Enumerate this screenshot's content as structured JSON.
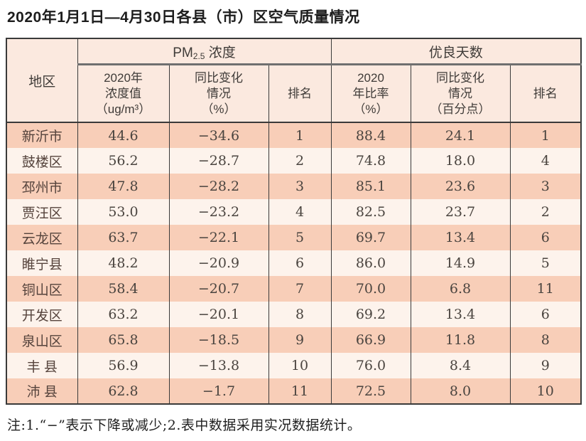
{
  "title": "2020年1月1日—4月30日各县（市）区空气质量情况",
  "table": {
    "region_header": "地区",
    "group_pm": {
      "prefix": "PM",
      "sub": "2.5",
      "suffix": " 浓度"
    },
    "group_days": "优良天数",
    "subheaders": {
      "pm_value": "2020年\n浓度值\n（ug/m³）",
      "pm_change": "同比变化\n情况\n（%）",
      "pm_rank": "排名",
      "days_rate": "2020\n年比率\n（%）",
      "days_change": "同比变化\n情况\n（百分点）",
      "days_rank": "排名"
    },
    "rows": [
      {
        "region": "新沂市",
        "pm_value": "44.6",
        "pm_change": "−34.6",
        "pm_rank": "1",
        "days_rate": "88.4",
        "days_change": "24.1",
        "days_rank": "1"
      },
      {
        "region": "鼓楼区",
        "pm_value": "56.2",
        "pm_change": "−28.7",
        "pm_rank": "2",
        "days_rate": "74.8",
        "days_change": "18.0",
        "days_rank": "4"
      },
      {
        "region": "邳州市",
        "pm_value": "47.8",
        "pm_change": "−28.2",
        "pm_rank": "3",
        "days_rate": "85.1",
        "days_change": "23.6",
        "days_rank": "3"
      },
      {
        "region": "贾汪区",
        "pm_value": "53.0",
        "pm_change": "−23.2",
        "pm_rank": "4",
        "days_rate": "82.5",
        "days_change": "23.7",
        "days_rank": "2"
      },
      {
        "region": "云龙区",
        "pm_value": "63.7",
        "pm_change": "−22.1",
        "pm_rank": "5",
        "days_rate": "69.7",
        "days_change": "13.4",
        "days_rank": "6"
      },
      {
        "region": "睢宁县",
        "pm_value": "48.2",
        "pm_change": "−20.9",
        "pm_rank": "6",
        "days_rate": "86.0",
        "days_change": "14.9",
        "days_rank": "5"
      },
      {
        "region": "铜山区",
        "pm_value": "58.4",
        "pm_change": "−20.7",
        "pm_rank": "7",
        "days_rate": "70.0",
        "days_change": "6.8",
        "days_rank": "11"
      },
      {
        "region": "开发区",
        "pm_value": "63.2",
        "pm_change": "−20.1",
        "pm_rank": "8",
        "days_rate": "69.2",
        "days_change": "13.4",
        "days_rank": "6"
      },
      {
        "region": "泉山区",
        "pm_value": "65.8",
        "pm_change": "−18.5",
        "pm_rank": "9",
        "days_rate": "66.9",
        "days_change": "11.8",
        "days_rank": "8"
      },
      {
        "region": "丰 县",
        "pm_value": "56.9",
        "pm_change": "−13.8",
        "pm_rank": "10",
        "days_rate": "76.0",
        "days_change": "8.4",
        "days_rank": "9"
      },
      {
        "region": "沛 县",
        "pm_value": "62.8",
        "pm_change": "−1.7",
        "pm_rank": "11",
        "days_rate": "72.5",
        "days_change": "8.0",
        "days_rank": "10"
      }
    ]
  },
  "note": "注:1.“−”表示下降或减少;2.表中数据采用实况数据统计。",
  "colors": {
    "header_bg": "#fbe9df",
    "row_dark": "#f8ceb8",
    "row_light": "#fdf3ec",
    "border_dark": "#3a3a3a",
    "group_underline": "#6f6f6f",
    "text_data": "#4a443f"
  }
}
